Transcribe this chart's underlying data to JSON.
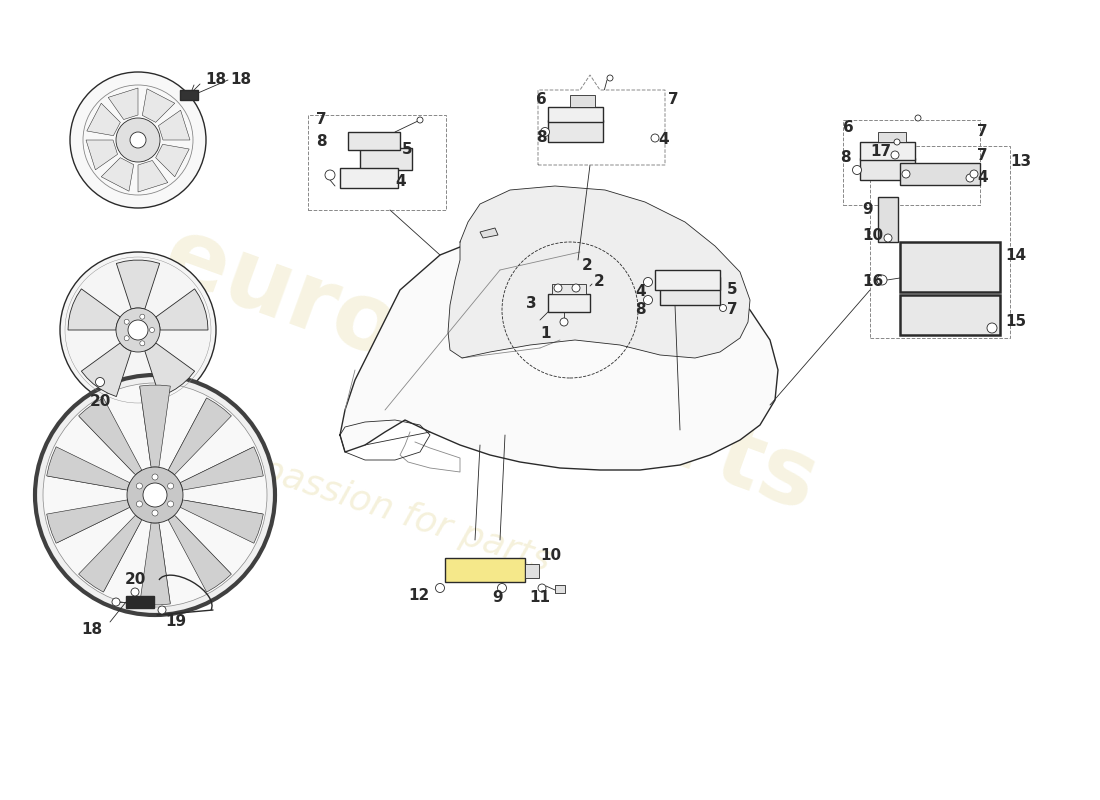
{
  "bg_color": "#ffffff",
  "lc": "#2a2a2a",
  "lc_light": "#888888",
  "lc_med": "#555555",
  "fig_width": 11.0,
  "fig_height": 8.0,
  "dpi": 100,
  "wm1": "eurocarparts",
  "wm2": "a passion for parts",
  "wm_color": "#d4c060"
}
